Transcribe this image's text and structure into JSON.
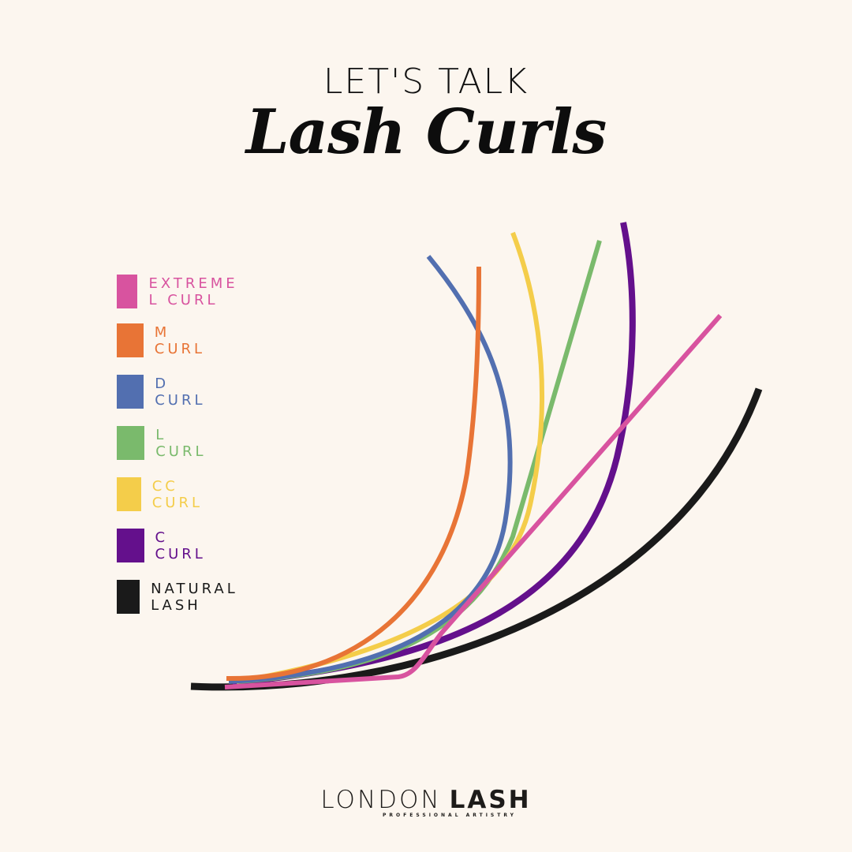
{
  "header": {
    "kicker": "LET'S TALK",
    "title": "Lash Curls"
  },
  "legend": [
    {
      "label": "EXTREME L CURL",
      "color": "#d8539f"
    },
    {
      "label": "M CURL",
      "color": "#e87436"
    },
    {
      "label": "D CURL",
      "color": "#526fb0"
    },
    {
      "label": "L CURL",
      "color": "#7aba6c"
    },
    {
      "label": "CC CURL",
      "color": "#f4cd4a"
    },
    {
      "label": "C CURL",
      "color": "#64108c"
    },
    {
      "label": "NATURAL LASH",
      "color": "#1a1a1a"
    }
  ],
  "logo": {
    "main_light": "LONDON",
    "main_bold": "LASH",
    "tagline": "PROFESSIONAL ARTISTRY"
  }
}
